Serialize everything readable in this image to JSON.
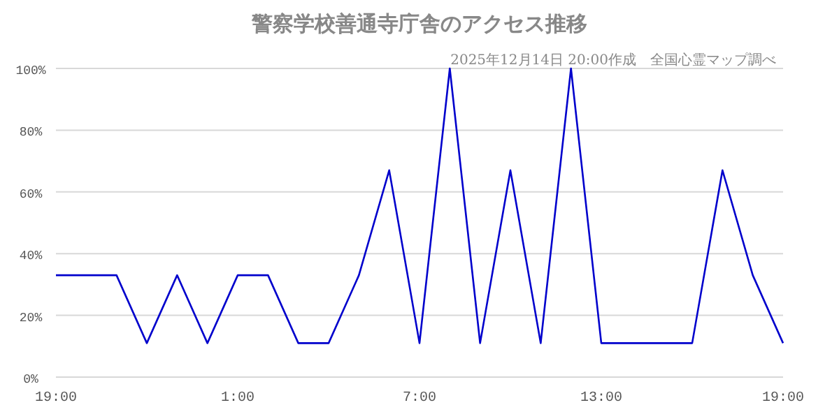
{
  "chart_data": {
    "type": "line",
    "title": "警察学校善通寺庁舎のアクセス推移",
    "annotations": [
      "2025年12月14日 20:00作成　全国心霊マップ調べ"
    ],
    "categories": [
      "19:00",
      null,
      null,
      null,
      null,
      null,
      "1:00",
      null,
      null,
      null,
      null,
      null,
      "7:00",
      null,
      null,
      null,
      null,
      null,
      "13:00",
      null,
      null,
      null,
      null,
      null,
      "19:00"
    ],
    "series": [
      {
        "color": "#0000cc",
        "values": [
          33,
          33,
          33,
          11,
          33,
          11,
          33,
          33,
          11,
          11,
          33,
          67,
          11,
          100,
          11,
          67,
          11,
          100,
          11,
          11,
          11,
          11,
          67,
          33,
          11
        ]
      }
    ],
    "ylim": [
      0,
      100
    ],
    "yticks": [
      {
        "value": 0,
        "label": "0%"
      },
      {
        "value": 20,
        "label": "20%"
      },
      {
        "value": 40,
        "label": "40%"
      },
      {
        "value": 60,
        "label": "60%"
      },
      {
        "value": 80,
        "label": "80%"
      },
      {
        "value": 100,
        "label": "100%"
      }
    ],
    "grid": "y"
  }
}
